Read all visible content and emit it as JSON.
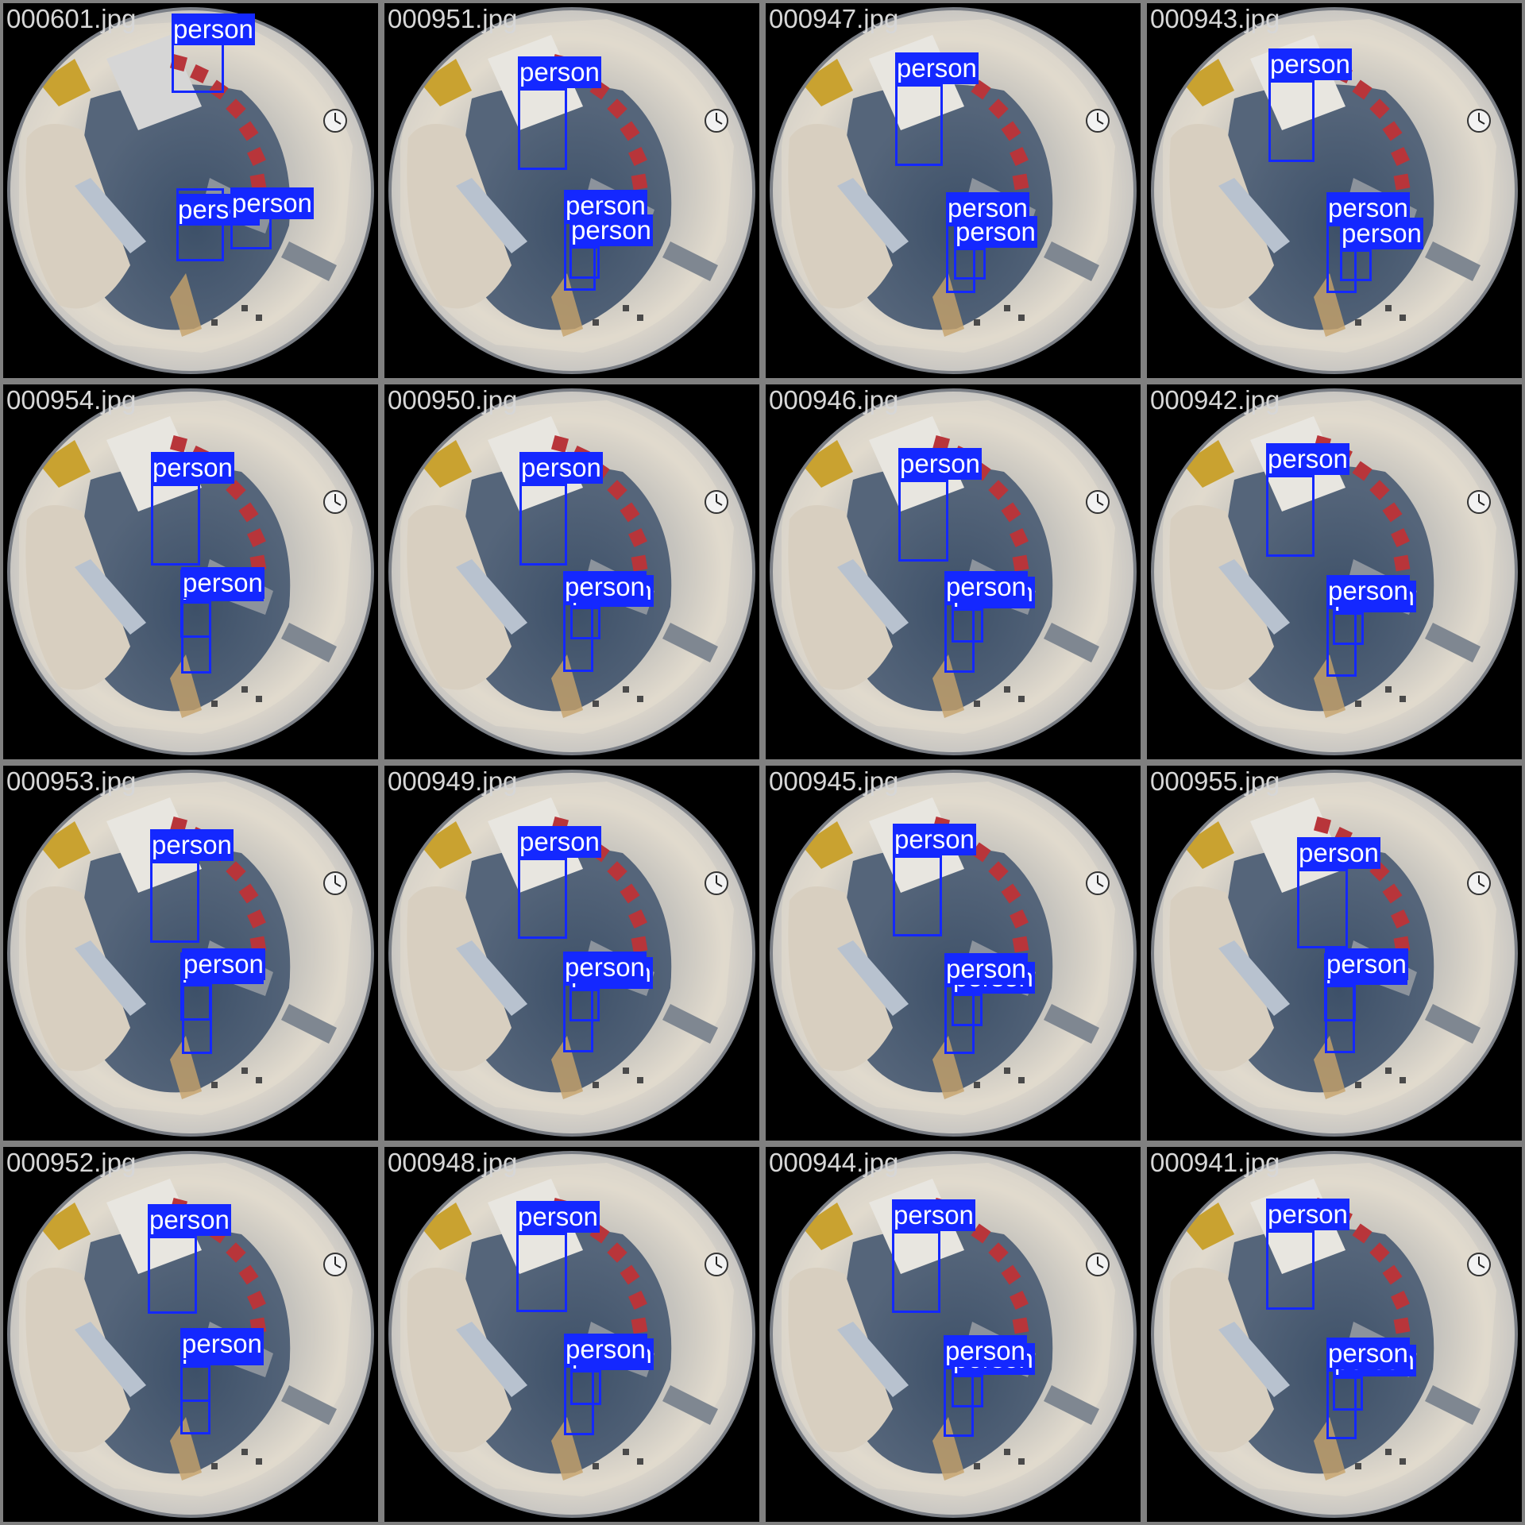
{
  "colors": {
    "box": "#1428ff",
    "label_text": "#ffffff",
    "filename_text": "#d7d7d7",
    "tile_border": "#808080",
    "background": "#000000"
  },
  "tiles": [
    {
      "filename": "000601.jpg",
      "detections": [
        {
          "label": "person"
        },
        {
          "label": "person"
        },
        {
          "label": "person"
        }
      ]
    },
    {
      "filename": "000951.jpg",
      "detections": [
        {
          "label": "person"
        },
        {
          "label": "person"
        },
        {
          "label": "person"
        }
      ]
    },
    {
      "filename": "000947.jpg",
      "detections": [
        {
          "label": "person"
        },
        {
          "label": "person"
        },
        {
          "label": "person"
        }
      ]
    },
    {
      "filename": "000943.jpg",
      "detections": [
        {
          "label": "person"
        },
        {
          "label": "person"
        },
        {
          "label": "person"
        }
      ]
    },
    {
      "filename": "000954.jpg",
      "detections": [
        {
          "label": "person"
        },
        {
          "label": "person"
        },
        {
          "label": "person"
        }
      ]
    },
    {
      "filename": "000950.jpg",
      "detections": [
        {
          "label": "person"
        },
        {
          "label": "person"
        },
        {
          "label": "person"
        }
      ]
    },
    {
      "filename": "000946.jpg",
      "detections": [
        {
          "label": "person"
        },
        {
          "label": "person"
        },
        {
          "label": "person"
        }
      ]
    },
    {
      "filename": "000942.jpg",
      "detections": [
        {
          "label": "person"
        },
        {
          "label": "person"
        },
        {
          "label": "person"
        }
      ]
    },
    {
      "filename": "000953.jpg",
      "detections": [
        {
          "label": "person"
        },
        {
          "label": "person"
        },
        {
          "label": "person"
        }
      ]
    },
    {
      "filename": "000949.jpg",
      "detections": [
        {
          "label": "person"
        },
        {
          "label": "person"
        },
        {
          "label": "person"
        }
      ]
    },
    {
      "filename": "000945.jpg",
      "detections": [
        {
          "label": "person"
        },
        {
          "label": "person"
        },
        {
          "label": "person"
        }
      ]
    },
    {
      "filename": "000955.jpg",
      "detections": [
        {
          "label": "person"
        },
        {
          "label": "person"
        },
        {
          "label": "person"
        }
      ]
    },
    {
      "filename": "000952.jpg",
      "detections": [
        {
          "label": "person"
        },
        {
          "label": "person"
        },
        {
          "label": "person"
        }
      ]
    },
    {
      "filename": "000948.jpg",
      "detections": [
        {
          "label": "person"
        },
        {
          "label": "person"
        },
        {
          "label": "person"
        }
      ]
    },
    {
      "filename": "000944.jpg",
      "detections": [
        {
          "label": "person"
        },
        {
          "label": "person"
        },
        {
          "label": "person"
        }
      ]
    },
    {
      "filename": "000941.jpg",
      "detections": [
        {
          "label": "person"
        },
        {
          "label": "person"
        },
        {
          "label": "person"
        }
      ]
    }
  ]
}
